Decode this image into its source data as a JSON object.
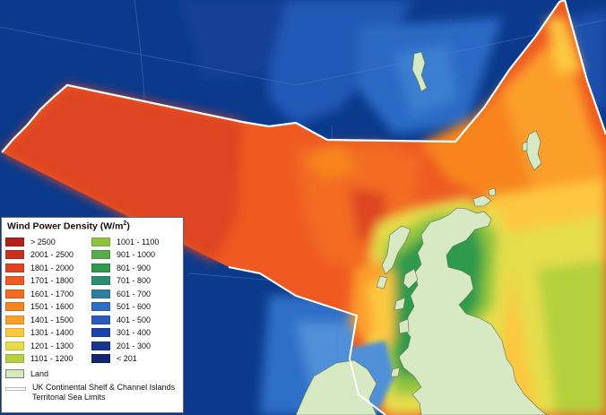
{
  "legend": {
    "title": "Wind Power Density (W/m",
    "title_sup": "2",
    "title_close": ")",
    "left_items": [
      {
        "label": "> 2500",
        "color": "#b1231a"
      },
      {
        "label": "2001 - 2500",
        "color": "#c8321d"
      },
      {
        "label": "1801 - 2000",
        "color": "#de4420"
      },
      {
        "label": "1701 - 1800",
        "color": "#ef5a22"
      },
      {
        "label": "1601 - 1700",
        "color": "#f36c21"
      },
      {
        "label": "1501 - 1600",
        "color": "#f7851f"
      },
      {
        "label": "1401 - 1500",
        "color": "#fb9f2c"
      },
      {
        "label": "1301 - 1400",
        "color": "#fdc83f"
      },
      {
        "label": "1201 - 1300",
        "color": "#e5dd4c"
      },
      {
        "label": "1101 - 1200",
        "color": "#b4d13c"
      }
    ],
    "right_items": [
      {
        "label": "1001 - 1100",
        "color": "#8cc43f"
      },
      {
        "label": "901 - 1000",
        "color": "#55ad4a"
      },
      {
        "label": "801 - 900",
        "color": "#2f9a4c"
      },
      {
        "label": "701 - 800",
        "color": "#2a8e74"
      },
      {
        "label": "601 - 700",
        "color": "#2e7ea3"
      },
      {
        "label": "501 - 600",
        "color": "#2f6ec2"
      },
      {
        "label": "401 - 500",
        "color": "#2c5bbf"
      },
      {
        "label": "301 - 400",
        "color": "#1c44a8"
      },
      {
        "label": "201 - 300",
        "color": "#163694"
      },
      {
        "label": "< 201",
        "color": "#102673"
      }
    ],
    "land_label": "Land",
    "limits_label_1": "UK Continental Shelf & Channel Islands",
    "limits_label_2": "Territorial Sea Limits"
  },
  "colors": {
    "deep_sea": "#0b3a8c",
    "land": "#d7e9c3",
    "shelf_outline": "#ffffff"
  }
}
